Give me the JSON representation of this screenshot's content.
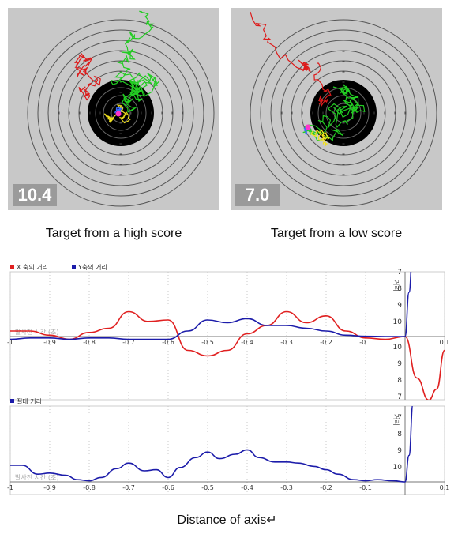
{
  "targets": [
    {
      "score": "10.4",
      "caption": "Target from a high score"
    },
    {
      "score": "7.0",
      "caption": "Target from a low score"
    }
  ],
  "chart_data": [
    {
      "type": "line",
      "legend": [
        "X 축의 거리",
        "Y축의 거리"
      ],
      "colors": [
        "#e02020",
        "#1c1caa"
      ],
      "xlabel": "발사전 시간 (초)",
      "ylabel": "거리",
      "xlim": [
        -1,
        0.1
      ],
      "x_ticks": [
        "-1",
        "-0.9",
        "-0.8",
        "-0.7",
        "-0.6",
        "-0.5",
        "-0.4",
        "-0.3",
        "-0.2",
        "-0.1",
        "0.1"
      ],
      "y_ticks_top": [
        "7",
        "8",
        "9",
        "10"
      ],
      "y_ticks_bottom": [
        "10",
        "9",
        "8",
        "7"
      ],
      "series": [
        {
          "name": "X 축의 거리",
          "x": [
            -1,
            -0.95,
            -0.9,
            -0.85,
            -0.8,
            -0.75,
            -0.7,
            -0.65,
            -0.6,
            -0.55,
            -0.5,
            -0.45,
            -0.4,
            -0.35,
            -0.3,
            -0.25,
            -0.2,
            -0.15,
            -0.1,
            -0.05,
            0,
            0.03,
            0.06,
            0.08,
            0.1
          ],
          "y": [
            0.2,
            0.2,
            0.05,
            -0.1,
            0.15,
            0.3,
            0.9,
            0.55,
            0.6,
            -0.5,
            -0.7,
            -0.5,
            0.1,
            0.4,
            0.9,
            0.5,
            0.75,
            0.2,
            -0.05,
            -0.1,
            0,
            -1.5,
            -2.3,
            -1.9,
            -0.5
          ]
        },
        {
          "name": "Y축의 거리",
          "x": [
            -1,
            -0.95,
            -0.9,
            -0.85,
            -0.8,
            -0.75,
            -0.7,
            -0.65,
            -0.6,
            -0.55,
            -0.5,
            -0.45,
            -0.4,
            -0.35,
            -0.3,
            -0.25,
            -0.2,
            -0.15,
            -0.1,
            -0.05,
            0,
            0.01,
            0.02
          ],
          "y": [
            -0.1,
            -0.05,
            -0.05,
            -0.1,
            -0.05,
            -0.05,
            -0.1,
            -0.1,
            -0.1,
            0.2,
            0.6,
            0.5,
            0.65,
            0.4,
            0.4,
            0.3,
            0.2,
            0.05,
            0.01,
            0,
            0,
            1.6,
            3.3
          ]
        }
      ]
    },
    {
      "type": "line",
      "legend": [
        "절대 거리"
      ],
      "colors": [
        "#1c1caa"
      ],
      "xlabel": "발사전 시간 (초)",
      "ylabel": "거리",
      "xlim": [
        -1,
        0.1
      ],
      "x_ticks": [
        "-1",
        "-0.9",
        "-0.8",
        "-0.7",
        "-0.6",
        "-0.5",
        "-0.4",
        "-0.3",
        "-0.2",
        "-0.1",
        "0.1"
      ],
      "y_ticks": [
        "7",
        "8",
        "9",
        "10"
      ],
      "series": [
        {
          "name": "절대 거리",
          "x": [
            -1,
            -0.97,
            -0.93,
            -0.9,
            -0.86,
            -0.83,
            -0.8,
            -0.77,
            -0.73,
            -0.7,
            -0.66,
            -0.63,
            -0.6,
            -0.57,
            -0.53,
            -0.5,
            -0.47,
            -0.43,
            -0.4,
            -0.37,
            -0.33,
            -0.3,
            -0.27,
            -0.23,
            -0.2,
            -0.17,
            -0.13,
            -0.1,
            -0.07,
            -0.03,
            0,
            0.01,
            0.02
          ],
          "y": [
            0.75,
            0.75,
            0.35,
            0.4,
            0.3,
            0.1,
            0.05,
            0.2,
            0.6,
            0.85,
            0.5,
            0.55,
            0.2,
            0.65,
            1.1,
            1.35,
            1.05,
            1.25,
            1.45,
            1.1,
            0.9,
            0.9,
            0.85,
            0.7,
            0.55,
            0.35,
            0.1,
            0.05,
            0.1,
            0.05,
            0,
            1.2,
            3.5
          ]
        }
      ]
    }
  ],
  "footer": "Distance of axis↵"
}
